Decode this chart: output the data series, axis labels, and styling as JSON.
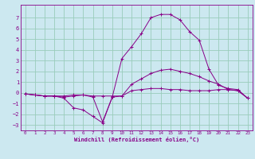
{
  "title": "",
  "xlabel": "Windchill (Refroidissement éolien,°C)",
  "background_color": "#cce8f0",
  "grid_color": "#99ccbb",
  "line_color": "#880088",
  "xlim": [
    -0.5,
    23.5
  ],
  "ylim": [
    -3.5,
    8.2
  ],
  "yticks": [
    -3,
    -2,
    -1,
    0,
    1,
    2,
    3,
    4,
    5,
    6,
    7
  ],
  "xticks": [
    0,
    1,
    2,
    3,
    4,
    5,
    6,
    7,
    8,
    9,
    10,
    11,
    12,
    13,
    14,
    15,
    16,
    17,
    18,
    19,
    20,
    21,
    22,
    23
  ],
  "series1_x": [
    0,
    1,
    2,
    3,
    4,
    5,
    6,
    7,
    8,
    9,
    10,
    11,
    12,
    13,
    14,
    15,
    16,
    17,
    18,
    19,
    20,
    21,
    22,
    23
  ],
  "series1_y": [
    -0.1,
    -0.2,
    -0.3,
    -0.3,
    -0.4,
    -0.3,
    -0.2,
    -0.4,
    -2.7,
    -0.4,
    -0.3,
    0.8,
    1.3,
    1.8,
    2.1,
    2.2,
    2.0,
    1.8,
    1.5,
    1.1,
    0.8,
    0.3,
    0.2,
    -0.5
  ],
  "series2_x": [
    0,
    1,
    2,
    3,
    4,
    5,
    6,
    7,
    8,
    9,
    10,
    11,
    12,
    13,
    14,
    15,
    16,
    17,
    18,
    19,
    20,
    21,
    22,
    23
  ],
  "series2_y": [
    -0.1,
    -0.2,
    -0.3,
    -0.3,
    -0.5,
    -1.4,
    -1.6,
    -2.2,
    -2.8,
    -0.4,
    3.2,
    4.3,
    5.5,
    7.0,
    7.3,
    7.3,
    6.8,
    5.7,
    4.9,
    2.2,
    0.7,
    0.4,
    0.3,
    -0.5
  ],
  "series3_x": [
    0,
    1,
    2,
    3,
    4,
    5,
    6,
    7,
    8,
    9,
    10,
    11,
    12,
    13,
    14,
    15,
    16,
    17,
    18,
    19,
    20,
    21,
    22,
    23
  ],
  "series3_y": [
    -0.1,
    -0.2,
    -0.3,
    -0.3,
    -0.3,
    -0.2,
    -0.2,
    -0.3,
    -0.3,
    -0.3,
    -0.3,
    0.2,
    0.3,
    0.4,
    0.4,
    0.3,
    0.3,
    0.2,
    0.2,
    0.2,
    0.3,
    0.3,
    0.2,
    -0.5
  ]
}
